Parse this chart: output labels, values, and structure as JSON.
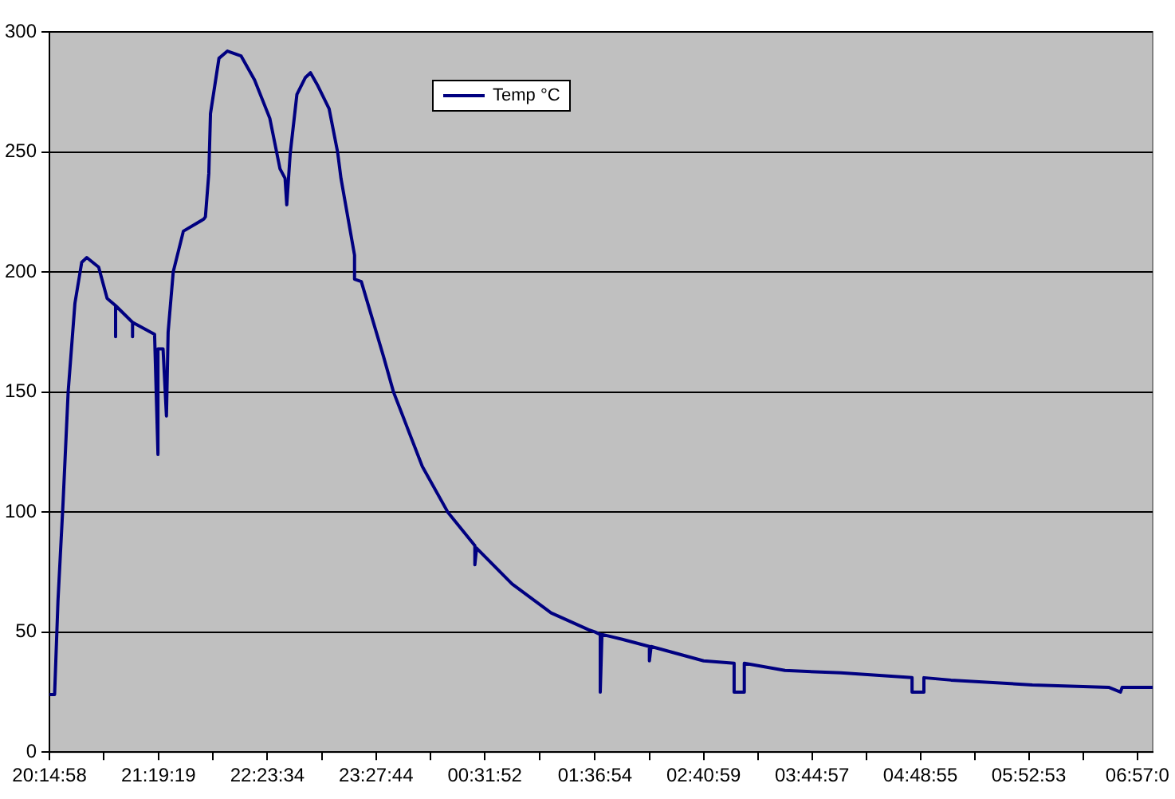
{
  "chart_data": {
    "type": "line",
    "x": [
      "--01-01T20:14:58",
      "--01-01T20:18",
      "--01-01T20:20",
      "--01-01T20:23",
      "--01-01T20:26",
      "--01-01T20:30",
      "--01-01T20:34",
      "--01-01T20:37",
      "--01-01T20:44",
      "--01-01T20:49",
      "--01-01T20:54",
      "--01-01T20:54",
      "--01-01T20:54",
      "--01-01T21:04",
      "--01-01T21:04",
      "--01-01T21:04",
      "--01-01T21:17",
      "--01-01T21:19",
      "--01-01T21:19",
      "--01-01T21:22",
      "--01-01T21:24",
      "--01-01T21:25",
      "--01-01T21:28",
      "--01-01T21:34",
      "--01-01T21:46",
      "--01-01T21:47",
      "--01-01T21:49",
      "--01-01T21:50",
      "--01-01T21:55",
      "--01-01T22:00",
      "--01-01T22:08",
      "--01-01T22:16",
      "--01-01T22:25",
      "--01-01T22:31",
      "--01-01T22:34",
      "--01-01T22:35",
      "--01-01T22:37",
      "--01-01T22:41",
      "--01-01T22:46",
      "--01-01T22:49",
      "--01-01T22:53",
      "--01-01T23:00",
      "--01-01T23:05",
      "--01-01T23:07",
      "--01-01T23:11",
      "--01-01T23:15",
      "--01-01T23:15",
      "--01-01T23:19",
      "--01-01T23:32",
      "--01-01T23:38",
      "--01-01T23:55",
      "--01-02T00:10",
      "--01-02T00:26",
      "--01-02T00:26",
      "--01-02T00:27",
      "--01-02T00:48",
      "--01-02T01:11",
      "--01-02T01:33",
      "--01-02T01:37",
      "--01-02T01:40",
      "--01-02T01:40",
      "--01-02T01:41",
      "--01-02T01:53",
      "--01-02T02:09",
      "--01-02T02:09",
      "--01-02T02:10",
      "--01-02T02:41",
      "--01-02T02:59",
      "--01-02T02:59",
      "--01-02T03:05",
      "--01-02T03:05",
      "--01-02T03:29",
      "--01-02T04:02",
      "--01-02T04:44",
      "--01-02T04:44",
      "--01-02T04:51",
      "--01-02T04:51",
      "--01-02T05:07",
      "--01-02T05:55",
      "--01-02T06:40",
      "--01-02T06:47",
      "--01-02T06:48",
      "--01-02T07:06"
    ],
    "series": [
      {
        "name": "Temp °C",
        "color": "#000080",
        "values": [
          24,
          24,
          63,
          104,
          150,
          187,
          204,
          206,
          202,
          189,
          186,
          173,
          186,
          179,
          173,
          179,
          174,
          124,
          168,
          168,
          140,
          175,
          200,
          217,
          222,
          223,
          241,
          266,
          289,
          292,
          290,
          280,
          264,
          243,
          239,
          228,
          249,
          274,
          281,
          283,
          278,
          268,
          250,
          239,
          223,
          207,
          197,
          196,
          165,
          150,
          119,
          100,
          86,
          78,
          85,
          70,
          58,
          51,
          50,
          49,
          25,
          49,
          47,
          44,
          38,
          44,
          38,
          37,
          25,
          25,
          37,
          34,
          33,
          31,
          25,
          25,
          31,
          30,
          28,
          27,
          25,
          27,
          27
        ]
      }
    ],
    "xlim": [
      "--01-01T20:14:58",
      "--01-02T07:06"
    ],
    "xticks": [
      {
        "value": "--01-01T20:14:58",
        "label": "20:14:58"
      },
      {
        "value": "--01-01T20:47:09",
        "label": null
      },
      {
        "value": "--01-01T21:19:19",
        "label": "21:19:19"
      },
      {
        "value": "--01-01T21:51:27",
        "label": null
      },
      {
        "value": "--01-01T22:23:34",
        "label": "22:23:34"
      },
      {
        "value": "--01-01T22:55:39",
        "label": null
      },
      {
        "value": "--01-01T23:27:44",
        "label": "23:27:44"
      },
      {
        "value": "--01-01T23:59:48",
        "label": null
      },
      {
        "value": "--01-02T00:31:52",
        "label": "00:31:52"
      },
      {
        "value": "--01-02T01:04:23",
        "label": null
      },
      {
        "value": "--01-02T01:36:54",
        "label": "01:36:54"
      },
      {
        "value": "--01-02T02:08:57",
        "label": null
      },
      {
        "value": "--01-02T02:40:59",
        "label": "02:40:59"
      },
      {
        "value": "--01-02T03:12:58",
        "label": null
      },
      {
        "value": "--01-02T03:44:57",
        "label": "03:44:57"
      },
      {
        "value": "--01-02T04:16:56",
        "label": null
      },
      {
        "value": "--01-02T04:48:55",
        "label": "04:48:55"
      },
      {
        "value": "--01-02T05:20:54",
        "label": null
      },
      {
        "value": "--01-02T05:52:53",
        "label": "05:52:53"
      },
      {
        "value": "--01-02T06:24:56",
        "label": null
      },
      {
        "value": "--01-02T06:57:00",
        "label": "06:57:0"
      }
    ],
    "ylim": [
      0,
      300
    ],
    "yticks": [
      0,
      50,
      100,
      150,
      200,
      250,
      300
    ],
    "grid": "y",
    "legend": "top",
    "marker": "none",
    "line_style": "solid"
  }
}
